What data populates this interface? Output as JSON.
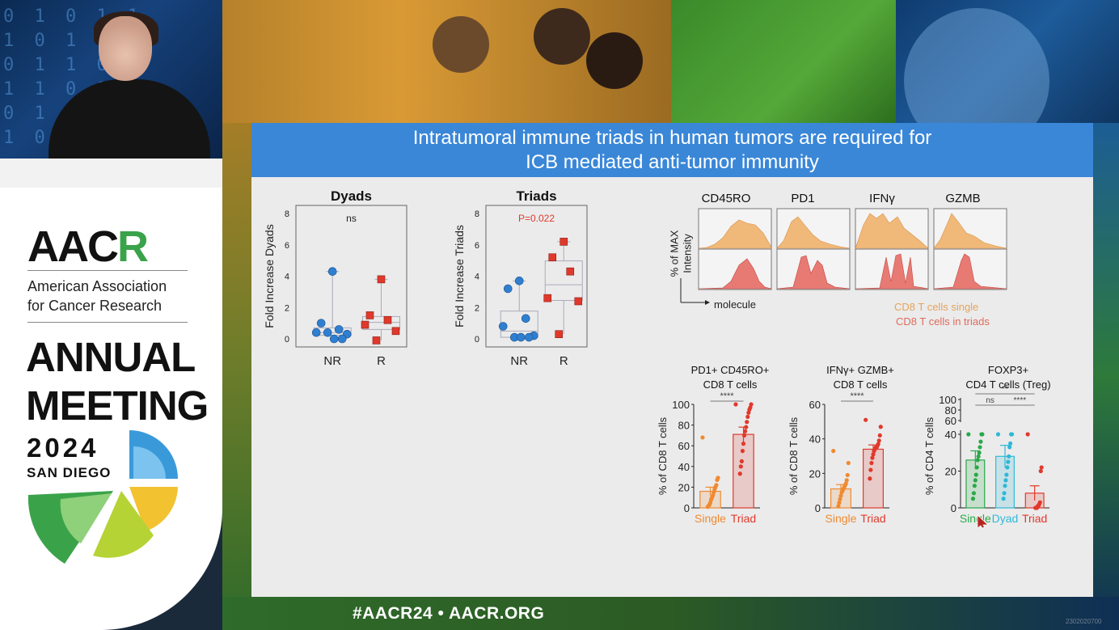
{
  "stage": {
    "footer_tag": "#AACR24  •  AACR.ORG",
    "corner_id": "2302020700"
  },
  "aacr_panel": {
    "logo_text_a": "AAC",
    "logo_text_r": "R",
    "org_name_line1": "American Association",
    "org_name_line2": "for Cancer Research",
    "meeting_line1": "ANNUAL",
    "meeting_line2": "MEETING",
    "year": "2024",
    "city": "SAN DIEGO",
    "colors": {
      "green": "#3aa34a",
      "blue": "#3a9ad9",
      "yellow": "#f2c230",
      "lime": "#b5d335"
    }
  },
  "slide": {
    "title_line1": "Intratumoral immune triads in human tumors are required for",
    "title_line2": "ICB mediated anti-tumor immunity",
    "title_bg": "#3a87d8"
  },
  "flow": {
    "headers": [
      "CD45RO",
      "PD1",
      "IFNγ",
      "GZMB"
    ],
    "ylabel_line1": "% of MAX",
    "ylabel_line2": "Intensity",
    "xlabel": "molecule",
    "legend_single": "CD8 T cells single",
    "legend_triads": "CD8 T cells in triads",
    "color_single": "#f0b97a",
    "color_triads": "#e87a74"
  },
  "chart_data": [
    {
      "type": "box",
      "title": "Dyads",
      "ylabel": "Fold Increase Dyads",
      "categories": [
        "NR",
        "R"
      ],
      "ylim": [
        0,
        8
      ],
      "yticks": [
        "0",
        "2",
        "4",
        "6",
        "8"
      ],
      "annotation": "ns",
      "series": [
        {
          "values": [
            4.3,
            1.0,
            0.6,
            0.4,
            0.3,
            0.4,
            0.0,
            0.0
          ]
        },
        {
          "values": [
            3.8,
            1.5,
            1.2,
            0.9,
            0.5,
            -0.1
          ]
        }
      ],
      "colors": [
        "#2f7fd1",
        "#e0392b"
      ]
    },
    {
      "type": "box",
      "title": "Triads",
      "ylabel": "Fold Increase Triads",
      "categories": [
        "NR",
        "R"
      ],
      "ylim": [
        0,
        8
      ],
      "yticks": [
        "0",
        "2",
        "4",
        "6",
        "8"
      ],
      "annotation": "P=0.022",
      "series": [
        {
          "values": [
            3.7,
            3.2,
            1.3,
            0.8,
            0.2,
            0.1,
            0.1,
            0.1
          ]
        },
        {
          "values": [
            6.2,
            5.2,
            4.3,
            2.6,
            2.4,
            0.3
          ]
        }
      ],
      "colors": [
        "#2f7fd1",
        "#e0392b"
      ]
    },
    {
      "type": "bar",
      "title_line1": "PD1+ CD45RO+",
      "title_line2": "CD8 T cells",
      "ylabel": "% of CD8 T cells",
      "categories": [
        "Single",
        "Triad"
      ],
      "ylim": [
        0,
        100
      ],
      "yticks": [
        "0",
        "20",
        "40",
        "60",
        "80",
        "100"
      ],
      "significance": "****",
      "means": [
        16,
        71
      ],
      "sem": [
        4,
        7
      ],
      "points": [
        [
          68,
          29,
          27,
          22,
          20,
          18,
          15,
          12,
          10,
          8,
          5,
          3,
          2,
          1
        ],
        [
          100,
          100,
          97,
          95,
          92,
          88,
          83,
          78,
          74,
          70,
          62,
          55,
          45,
          40,
          33
        ]
      ],
      "colors": [
        "#f08a30",
        "#e0392b"
      ]
    },
    {
      "type": "bar",
      "title_line1": "IFNγ+ GZMB+",
      "title_line2": "CD8 T cells",
      "ylabel": "% of CD8 T cells",
      "categories": [
        "Single",
        "Triad"
      ],
      "ylim": [
        0,
        60
      ],
      "yticks": [
        "0",
        "20",
        "40",
        "60"
      ],
      "significance": "****",
      "means": [
        11,
        34
      ],
      "sem": [
        2.5,
        2.5
      ],
      "points": [
        [
          33,
          26,
          19,
          16,
          14,
          13,
          12,
          11,
          10,
          9,
          7,
          5,
          3,
          1
        ],
        [
          51,
          47,
          42,
          39,
          37,
          36,
          35,
          35,
          34,
          33,
          31,
          29,
          26,
          22,
          17
        ]
      ],
      "colors": [
        "#f08a30",
        "#e0392b"
      ]
    },
    {
      "type": "bar",
      "title_line1": "FOXP3+",
      "title_line2": "CD4 T cells (Treg)",
      "ylabel": "% of CD4 T cells",
      "categories": [
        "Single",
        "Dyad",
        "Triad"
      ],
      "yticks": [
        "0",
        "20",
        "40",
        "60",
        "80",
        "100"
      ],
      "significance": [
        "ns",
        "****",
        "**"
      ],
      "means": [
        26,
        28,
        8
      ],
      "sem": [
        5,
        6,
        4
      ],
      "points": [
        [
          45,
          45,
          42,
          36,
          33,
          30,
          28,
          26,
          22,
          18,
          15,
          12,
          8,
          5
        ],
        [
          50,
          45,
          42,
          35,
          33,
          28,
          25,
          22,
          18,
          15,
          12,
          8,
          5
        ],
        [
          50,
          22,
          20,
          3,
          2,
          1,
          1,
          0,
          0,
          0
        ]
      ],
      "colors": [
        "#2aa84a",
        "#2fb8d8",
        "#e0392b"
      ]
    }
  ]
}
